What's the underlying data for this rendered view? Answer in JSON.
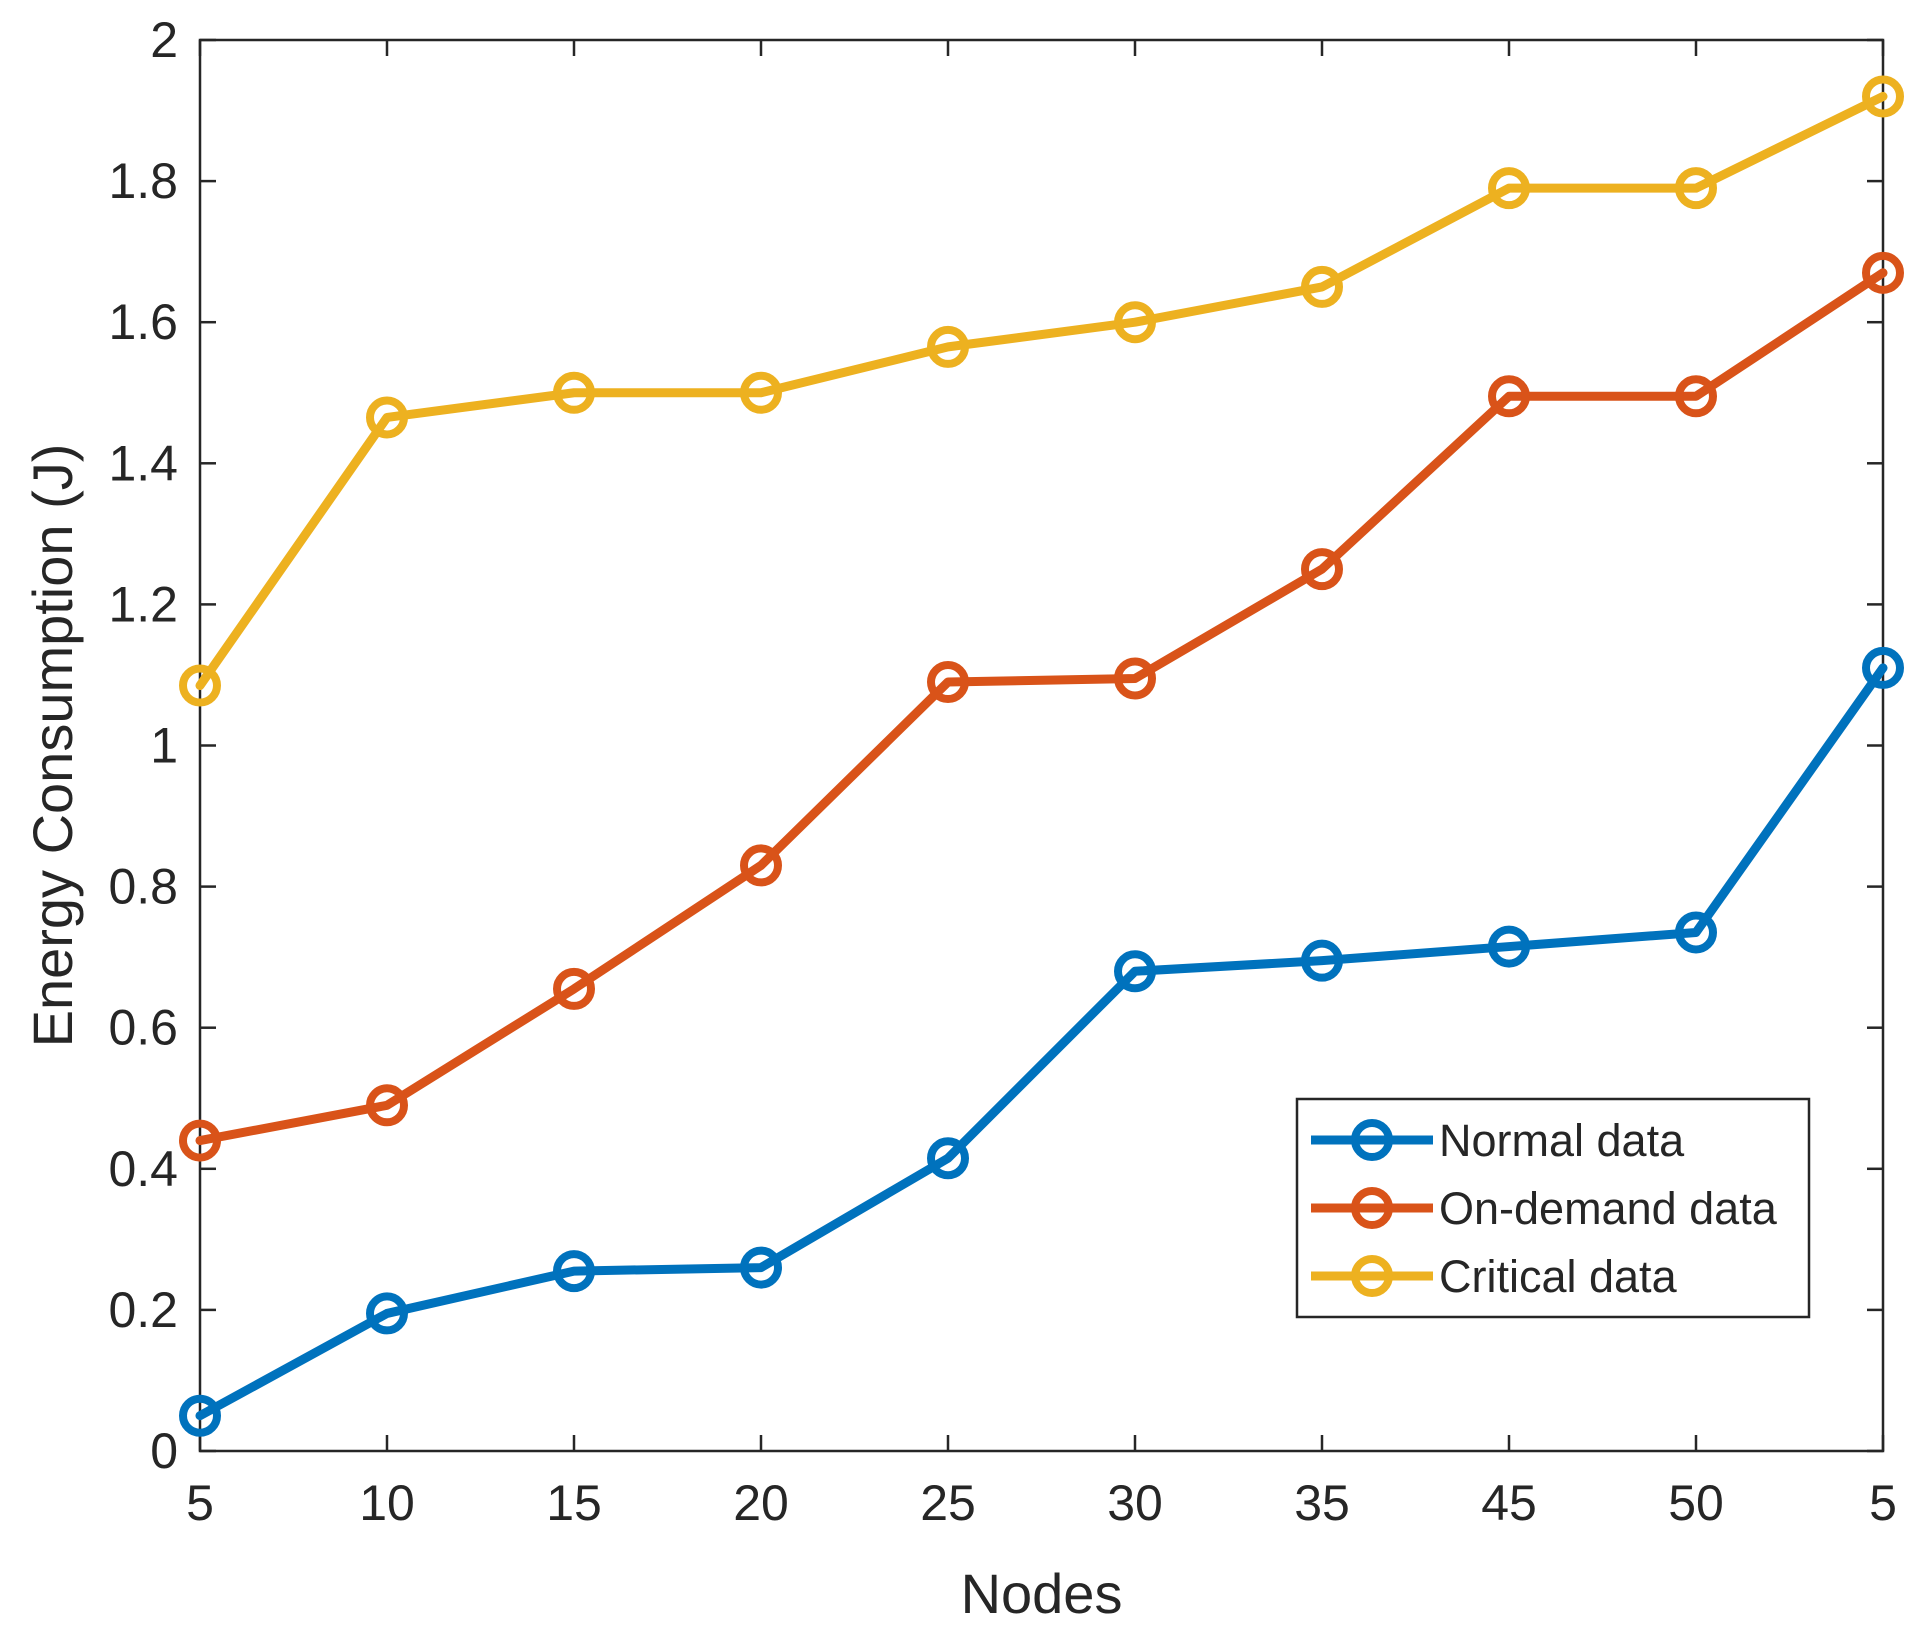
{
  "chart_data": {
    "type": "line",
    "title": "",
    "xlabel": "Nodes",
    "ylabel": "Energy Consumption (J)",
    "categories": [
      "5",
      "10",
      "15",
      "20",
      "25",
      "30",
      "35",
      "45",
      "50",
      "5"
    ],
    "ylim": [
      0,
      2
    ],
    "yticks": [
      "0",
      "0.2",
      "0.4",
      "0.6",
      "0.8",
      "1",
      "1.2",
      "1.4",
      "1.6",
      "1.8",
      "2"
    ],
    "ytick_values": [
      0,
      0.2,
      0.4,
      0.6,
      0.8,
      1.0,
      1.2,
      1.4,
      1.6,
      1.8,
      2.0
    ],
    "grid": false,
    "legend_position": "bottom-right",
    "series": [
      {
        "name": "Normal data",
        "color": "#0072BD",
        "values": [
          0.05,
          0.195,
          0.255,
          0.26,
          0.415,
          0.68,
          0.695,
          0.715,
          0.735,
          1.11
        ]
      },
      {
        "name": "On-demand data",
        "color": "#D95319",
        "values": [
          0.44,
          0.49,
          0.655,
          0.83,
          1.09,
          1.095,
          1.25,
          1.495,
          1.495,
          1.67
        ]
      },
      {
        "name": "Critical data",
        "color": "#EDB120",
        "values": [
          1.085,
          1.465,
          1.5,
          1.5,
          1.565,
          1.6,
          1.65,
          1.79,
          1.79,
          1.92
        ]
      }
    ]
  }
}
